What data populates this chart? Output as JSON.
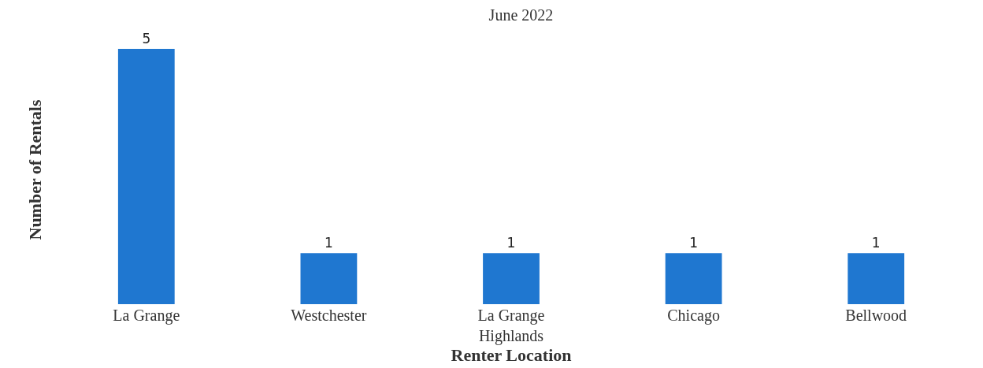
{
  "chart_data": {
    "type": "bar",
    "title": "June 2022",
    "xlabel": "Renter Location",
    "ylabel": "Number of Rentals",
    "categories": [
      "La Grange",
      "Westchester",
      "La Grange Highlands",
      "Chicago",
      "Bellwood"
    ],
    "values": [
      5,
      1,
      1,
      1,
      1
    ],
    "color": "#1f77d0",
    "data_labels": true,
    "tick_labels": "x"
  }
}
